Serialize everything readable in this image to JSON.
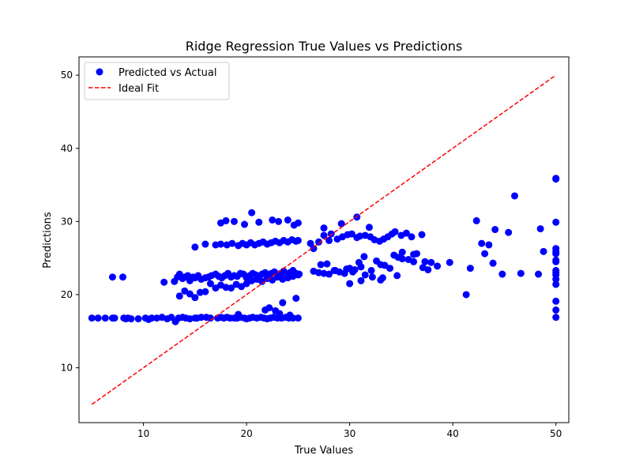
{
  "chart_data": {
    "type": "scatter",
    "title": "Ridge Regression True Values vs Predictions",
    "xlabel": "True Values",
    "ylabel": "Predictions",
    "xlim": [
      3.75,
      51.25
    ],
    "ylim": [
      2.5,
      52.5
    ],
    "xticks": [
      10,
      20,
      30,
      40,
      50
    ],
    "yticks": [
      10,
      20,
      30,
      40,
      50
    ],
    "grid": false,
    "legend_position": "top-left",
    "series": [
      {
        "name": "Predicted vs Actual",
        "kind": "scatter",
        "color": "#0000ff",
        "x": [
          5,
          5.6,
          6.3,
          7,
          7.2,
          8.1,
          8.3,
          8.5,
          8.8,
          9.5,
          10.2,
          10.5,
          10.8,
          11.3,
          11.8,
          12.3,
          12.7,
          13.1,
          13.4,
          13.8,
          14.1,
          14.5,
          15,
          15.2,
          15.6,
          16.1,
          16.5,
          17.2,
          17.5,
          17.8,
          18.1,
          18.4,
          18.8,
          19,
          19.1,
          19.4,
          19.8,
          20,
          20.3,
          20.6,
          21,
          21.4,
          21.7,
          22,
          22.3,
          22.6,
          23,
          23.4,
          23.8,
          24.1,
          24.5,
          25,
          7,
          8,
          12,
          13,
          13.3,
          13.5,
          13.8,
          14,
          14.3,
          14.5,
          14.8,
          15,
          15.3,
          15.6,
          16,
          16.3,
          16.6,
          17,
          17.3,
          17.6,
          17.9,
          18.2,
          18.5,
          18.8,
          19.1,
          19.4,
          19.7,
          20,
          20.3,
          20.6,
          20.9,
          21.2,
          21.5,
          21.8,
          22.1,
          22.4,
          22.7,
          23,
          23.3,
          23.6,
          23.9,
          24.2,
          24.5,
          24.8,
          25.1,
          13.5,
          14,
          14.5,
          15,
          15.5,
          16,
          16.5,
          17,
          17.5,
          18,
          18.5,
          19,
          19.5,
          20,
          20.5,
          21,
          21.5,
          22,
          22.5,
          23,
          23.5,
          24,
          24.5,
          25,
          15,
          16,
          17,
          17.5,
          18.1,
          18.6,
          19.2,
          19.6,
          20,
          20.4,
          20.8,
          21.2,
          21.6,
          22,
          22.4,
          22.8,
          23.2,
          23.6,
          24,
          24.4,
          24.8,
          25,
          17.5,
          18,
          18.8,
          19.8,
          20.5,
          21.2,
          22.5,
          23.1,
          24,
          24.6,
          25,
          19.2,
          22.8,
          23.2,
          24.2,
          21.8,
          23.5,
          22.2,
          24.8,
          26.2,
          26.5,
          27,
          27.5,
          28,
          28.2,
          28.8,
          29.3,
          29.8,
          30.2,
          30.7,
          31,
          31.5,
          32,
          32.4,
          32.9,
          33.3,
          33.7,
          34.1,
          34.4,
          35,
          35.5,
          36,
          36.2,
          36.5,
          37,
          37.3,
          37.9,
          38.5,
          39.7,
          26.5,
          27,
          27.5,
          28,
          28.5,
          29,
          29.5,
          30,
          30.5,
          31.1,
          31.5,
          32.1,
          32.6,
          33,
          33.4,
          33.9,
          34.3,
          34.7,
          35.1,
          35.7,
          36.2,
          37.1,
          37.6,
          27.2,
          27.8,
          28.6,
          29.7,
          30.3,
          30.9,
          31.4,
          32.2,
          33,
          34.6,
          35.1,
          33.2,
          30,
          31.1,
          27.5,
          29.2,
          30.7,
          31.9,
          41.3,
          41.7,
          42.3,
          42.8,
          43.1,
          43.5,
          43.9,
          44.1,
          44.8,
          45.4,
          46,
          46.6,
          48.3,
          48.5,
          48.8,
          50,
          50,
          50,
          50,
          50,
          50,
          50,
          50,
          50,
          50,
          50,
          50,
          50,
          50,
          50,
          50
        ],
        "y": [
          16.8,
          16.8,
          16.8,
          16.8,
          16.8,
          16.8,
          16.7,
          16.8,
          16.7,
          16.7,
          16.8,
          16.6,
          16.8,
          16.8,
          16.9,
          16.7,
          16.9,
          16.3,
          16.8,
          16.9,
          16.8,
          16.7,
          16.8,
          16.8,
          16.9,
          16.9,
          16.8,
          16.8,
          16.9,
          16.8,
          16.9,
          16.8,
          16.8,
          16.8,
          16.8,
          16.9,
          16.8,
          16.7,
          16.8,
          16.9,
          16.8,
          16.9,
          16.8,
          16.7,
          16.8,
          16.9,
          16.8,
          16.8,
          16.9,
          16.8,
          16.8,
          16.8,
          22.4,
          22.4,
          21.7,
          21.8,
          22.4,
          22.8,
          22.2,
          22.4,
          22.6,
          21.9,
          22.4,
          22.3,
          22.6,
          22.1,
          22.3,
          22.4,
          22.6,
          22.8,
          22.5,
          22.3,
          22.6,
          22.9,
          22.4,
          22.6,
          22.5,
          22.9,
          22.8,
          22.3,
          22.6,
          22.9,
          22.7,
          22.4,
          22.8,
          23,
          22.6,
          22.9,
          23.1,
          22.7,
          22.9,
          23.2,
          22.8,
          23,
          23.3,
          22.9,
          22.8,
          19.8,
          20.5,
          20.1,
          19.6,
          20.3,
          20.4,
          21.5,
          20.9,
          21.3,
          21,
          20.9,
          21.4,
          21.1,
          21.5,
          21.9,
          22.1,
          21.8,
          22.2,
          22,
          22.4,
          22.1,
          22.3,
          22.5,
          22.7,
          26.5,
          26.9,
          26.8,
          26.9,
          26.8,
          27,
          26.7,
          27,
          26.8,
          27.1,
          26.8,
          27,
          27.2,
          26.9,
          27.1,
          27.3,
          27.1,
          27.4,
          27.2,
          27.5,
          27.3,
          27.4,
          29.8,
          30.1,
          30,
          29.6,
          31.2,
          29.9,
          30.2,
          30,
          30.2,
          29.5,
          29.8,
          17.3,
          17.8,
          17.4,
          17.2,
          17.9,
          18.9,
          18.2,
          19.5,
          27,
          26.3,
          27.2,
          28.1,
          27.4,
          28.3,
          27.6,
          27.9,
          28.2,
          28.3,
          27.8,
          28,
          28.1,
          27.9,
          27.5,
          27.3,
          27.6,
          27.9,
          28.3,
          28.6,
          28.1,
          28.4,
          27.9,
          25.5,
          25.6,
          28.2,
          24.5,
          24.4,
          23.9,
          24.4,
          23.2,
          23,
          22.9,
          22.8,
          23.3,
          23.1,
          22.9,
          23.6,
          23.4,
          23.8,
          22.7,
          23.3,
          24.6,
          24.1,
          24,
          23.6,
          25.4,
          25.1,
          25.8,
          24.8,
          24.5,
          23.7,
          23.4,
          24.1,
          24.2,
          23.3,
          23.5,
          23.1,
          24.4,
          25.2,
          22.4,
          22,
          22.6,
          24.9,
          22.3,
          21.5,
          21.9,
          29.1,
          29.7,
          30.6,
          29.2,
          20,
          23.6,
          30.1,
          27,
          25.6,
          26.8,
          24.3,
          28.9,
          22.8,
          28.5,
          33.5,
          22.9,
          22.8,
          29,
          25.9,
          35.8,
          35.9,
          29.9,
          26.3,
          25.6,
          24.7,
          24.5,
          23.3,
          22.7,
          22.1,
          21.4,
          19.1,
          17.9,
          16.9,
          23,
          25.9
        ]
      },
      {
        "name": "Ideal Fit",
        "kind": "line",
        "style": "dashed",
        "color": "#ff0000",
        "x": [
          5,
          50
        ],
        "y": [
          5,
          50
        ]
      }
    ]
  }
}
